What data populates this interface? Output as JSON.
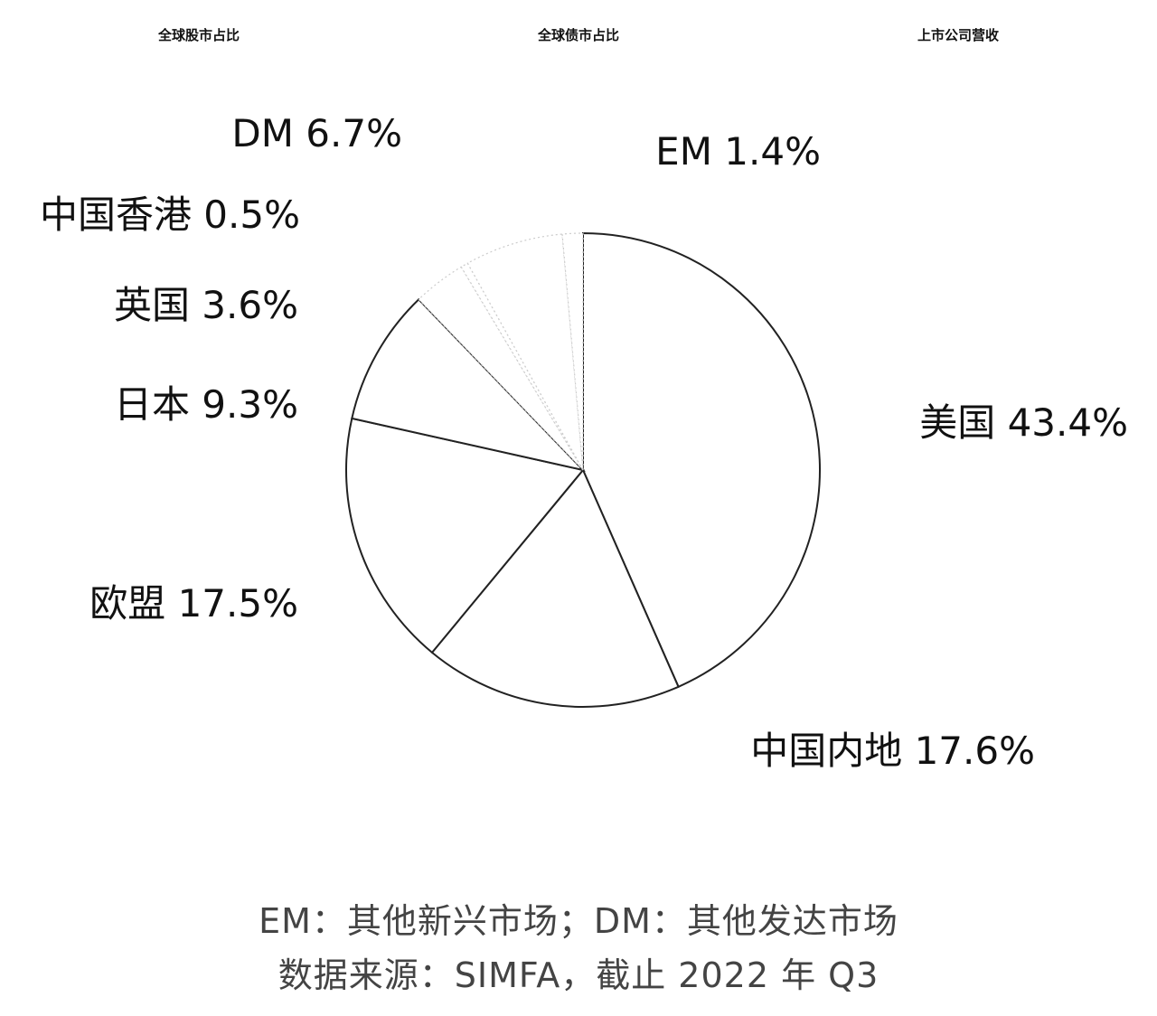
{
  "tabs": [
    {
      "label": "全球股市占比"
    },
    {
      "label": "全球债市占比"
    },
    {
      "label": "上市公司营收"
    }
  ],
  "chart_data": {
    "type": "pie",
    "title": "",
    "slices": [
      {
        "label": "美国",
        "value": 43.4,
        "text": "美国 43.4%"
      },
      {
        "label": "EM",
        "value": 1.4,
        "text": "EM 1.4%"
      },
      {
        "label": "DM",
        "value": 6.7,
        "text": "DM 6.7%"
      },
      {
        "label": "中国香港",
        "value": 0.5,
        "text": "中国香港 0.5%"
      },
      {
        "label": "英国",
        "value": 3.6,
        "text": "英国 3.6%"
      },
      {
        "label": "日本",
        "value": 9.3,
        "text": "日本 9.3%"
      },
      {
        "label": "欧盟",
        "value": 17.5,
        "text": "欧盟 17.5%"
      },
      {
        "label": "中国内地",
        "value": 17.6,
        "text": "中国内地 17.6%"
      }
    ],
    "colors": {
      "stroke": "#222222",
      "fill": "#ffffff",
      "faint_stroke": "#cccccc"
    }
  },
  "notes": {
    "line1": "EM：其他新兴市场；DM：其他发达市场",
    "line2": "数据来源：SIMFA，截止 2022 年 Q3"
  }
}
